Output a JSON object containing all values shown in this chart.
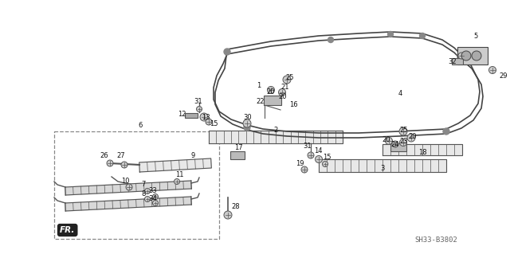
{
  "bg_color": "#ffffff",
  "diagram_code": "SH33-B3802",
  "fig_width": 6.4,
  "fig_height": 3.19,
  "dpi": 100,
  "label_fontsize": 6.0,
  "label_color": "#111111"
}
